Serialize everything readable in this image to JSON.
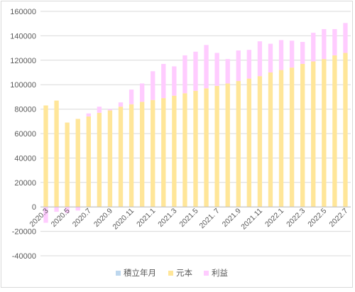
{
  "chart_data": {
    "type": "bar",
    "stacked": true,
    "categories": [
      "2020.3",
      "2020.4",
      "2020.5",
      "2020.6",
      "2020.7",
      "2020.8",
      "2020.9",
      "2020.10",
      "2020.11",
      "2020.12",
      "2021.1",
      "2021.2",
      "2021.3",
      "2021.4",
      "2021.5",
      "2021.6",
      "2021. 7",
      "2021.8",
      "2021.9",
      "2021.10",
      "2021.11",
      "2021.12",
      "2022.1",
      "2022.2",
      "2022.3",
      "2022.4",
      "2022.5",
      "2022.6",
      "2022.7"
    ],
    "x_tick_labels": [
      "2020.3",
      "",
      "2020.5",
      "",
      "2020.7",
      "",
      "2020.9",
      "",
      "2020.11",
      "",
      "2021.1",
      "",
      "2021.3",
      "",
      "2021.5",
      "",
      "2021. 7",
      "",
      "2021.9",
      "",
      "2021.11",
      "",
      "2022.1",
      "",
      "2022.3",
      "",
      "2022.5",
      "",
      "2022.7"
    ],
    "series": [
      {
        "name": "積立年月",
        "color": "#bdd7ee",
        "values": [
          0,
          0,
          0,
          0,
          0,
          0,
          0,
          0,
          0,
          0,
          0,
          0,
          0,
          0,
          0,
          0,
          0,
          0,
          0,
          0,
          0,
          0,
          0,
          0,
          0,
          0,
          0,
          0,
          0
        ]
      },
      {
        "name": "元本",
        "color": "#ffe699",
        "values": [
          83000,
          87000,
          69000,
          72000,
          74000,
          77000,
          79000,
          82000,
          84000,
          86000,
          87500,
          89000,
          91000,
          93000,
          95000,
          97000,
          99000,
          101000,
          103000,
          105000,
          107000,
          110000,
          112000,
          114000,
          117000,
          119000,
          121000,
          124000,
          126000
        ]
      },
      {
        "name": "利益",
        "color": "#ffccff",
        "values": [
          -13000,
          -4000,
          -5000,
          -3000,
          2500,
          5000,
          1000,
          3500,
          12000,
          15000,
          23500,
          28000,
          24000,
          31000,
          32000,
          35500,
          27000,
          20000,
          25000,
          23500,
          28500,
          23500,
          24500,
          22000,
          18000,
          23500,
          24500,
          21500,
          24500
        ]
      }
    ],
    "y_ticks": [
      "160000",
      "140000",
      "120000",
      "100000",
      "80000",
      "60000",
      "40000",
      "20000",
      "0",
      "-20000",
      "-40000"
    ],
    "ylim": [
      -40000,
      160000
    ],
    "grid": true,
    "legend": "bottom",
    "title": "",
    "xlabel": "",
    "ylabel": ""
  }
}
